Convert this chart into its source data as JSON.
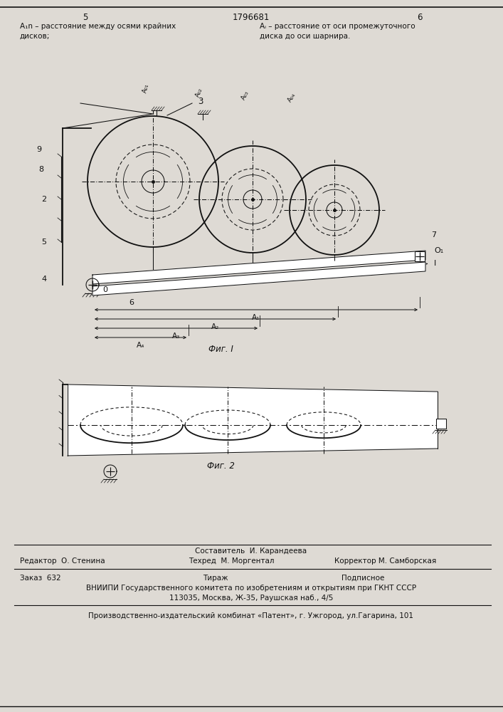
{
  "bg_color": "#dedad4",
  "page_number_left": "5",
  "page_number_center": "1796681",
  "page_number_right": "6",
  "header_left": "A₁n – расстояние между осями крайних\nдисков;",
  "header_right": "Aᵢ – расстояние от оси промежуточного\nдиска до оси шарнира.",
  "fig1_caption": "Фиг. I",
  "fig2_caption": "Фиг. 2",
  "footer_editor": "Редактор  О. Стенина",
  "footer_tech": "Техред  М. Моргентал",
  "footer_corrector": "Корректор М. Самборская",
  "footer_composer": "Составитель  И. Карандеева",
  "footer_order": "Заказ  632",
  "footer_print": "Тираж",
  "footer_subscription": "Подписное",
  "footer_vniipi": "ВНИИПИ Государственного комитета по изобретениям и открытиям при ГКНТ СССР",
  "footer_address": "113035, Москва, Ж-35, Раушская наб., 4/5",
  "footer_plant": "Производственно-издательский комбинат «Патент», г. Ужгород, ул.Гагарина, 101"
}
